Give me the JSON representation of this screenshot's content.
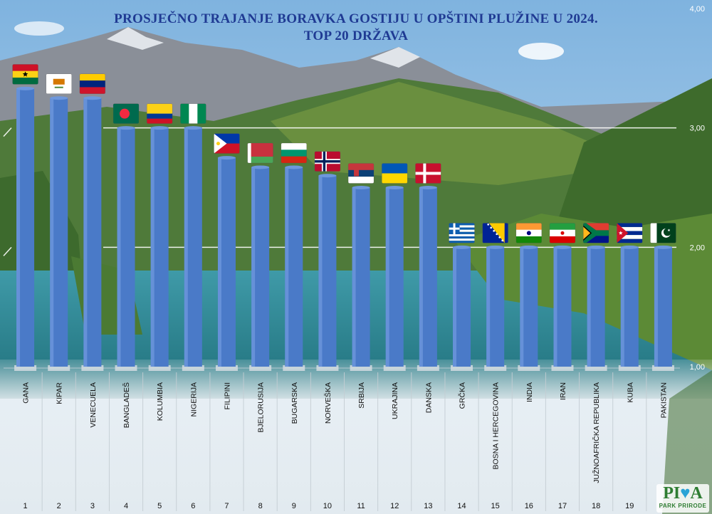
{
  "chart_data": {
    "type": "bar",
    "title_line1": "PROSJEČNO TRAJANJE BORAVKA GOSTIJU U OPŠTINI PLUŽINE U 2024.",
    "title_line2": "TOP 20 DRŽAVA",
    "categories": [
      "GANA",
      "KIPAR",
      "VENECUELA",
      "BANGLADEŠ",
      "KOLUMBIA",
      "NIGERIJA",
      "FILIPINI",
      "BJELORUSIJA",
      "BUGARSKA",
      "NORVEŠKA",
      "SRBIJA",
      "UKRAJINA",
      "DANSKA",
      "GRČKA",
      "BOSNA I HERCEGOVINA",
      "INDIA",
      "IRAN",
      "JUŽNOAFRIČKA REPUBLIKA",
      "KUBA",
      "PAKISTAN"
    ],
    "ranks": [
      "1",
      "2",
      "3",
      "4",
      "5",
      "6",
      "7",
      "8",
      "9",
      "10",
      "11",
      "12",
      "13",
      "14",
      "15",
      "16",
      "17",
      "18",
      "19",
      "20"
    ],
    "values": [
      3.33,
      3.25,
      3.25,
      3.0,
      3.0,
      3.0,
      2.75,
      2.67,
      2.67,
      2.6,
      2.5,
      2.5,
      2.5,
      2.0,
      2.0,
      2.0,
      2.0,
      2.0,
      2.0,
      2.0
    ],
    "flags": [
      "ghana",
      "cyprus",
      "venezuela",
      "bangladesh",
      "colombia",
      "nigeria",
      "philippines",
      "belarus",
      "bulgaria",
      "norway",
      "serbia",
      "ukraine",
      "denmark",
      "greece",
      "bosnia",
      "india",
      "iran",
      "south-africa",
      "cuba",
      "pakistan"
    ],
    "ylim": [
      1.0,
      4.0
    ],
    "y_ticks": [
      1.0,
      2.0,
      3.0,
      4.0
    ],
    "y_tick_labels": [
      "1,00",
      "2,00",
      "3,00",
      "4,00"
    ],
    "bar_color": "#4a7ac8",
    "grid": true
  },
  "logo": {
    "text_left": "PI",
    "text_heart": "♥",
    "text_right": "A",
    "subtitle": "PARK PRIRODE"
  }
}
